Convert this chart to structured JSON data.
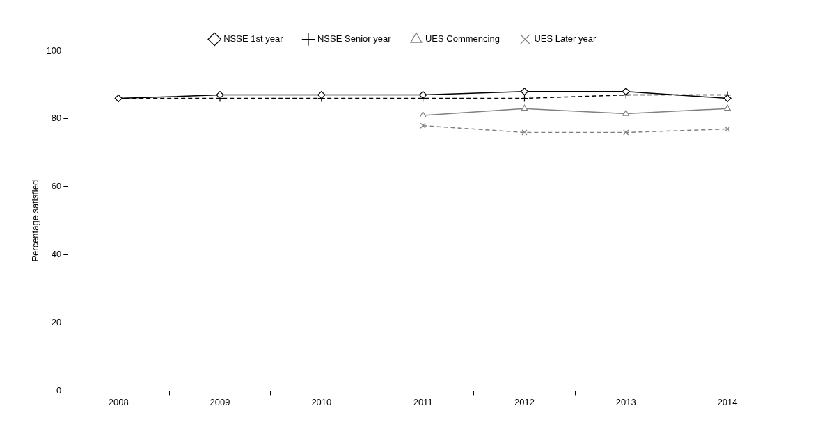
{
  "chart_data": {
    "type": "line",
    "ylabel": "Percentage satisfied",
    "categories": [
      "2008",
      "2009",
      "2010",
      "2011",
      "2012",
      "2013",
      "2014"
    ],
    "ylim": [
      0,
      100
    ],
    "yticks": [
      0,
      20,
      40,
      60,
      80,
      100
    ],
    "grid": false,
    "legend": "top",
    "series": [
      {
        "name": "NSSE 1st year",
        "color": "#000000",
        "marker": "diamond",
        "line_style": "solid",
        "values": [
          86,
          87,
          87,
          87,
          88,
          88,
          86
        ]
      },
      {
        "name": "NSSE Senior year",
        "color": "#000000",
        "marker": "cross",
        "line_style": "dashed",
        "values": [
          86,
          86,
          86,
          86,
          86,
          87,
          87
        ]
      },
      {
        "name": "UES Commencing",
        "color": "#808080",
        "marker": "triangle",
        "line_style": "solid",
        "values": [
          null,
          null,
          null,
          81,
          83,
          81.5,
          83
        ]
      },
      {
        "name": "UES Later year",
        "color": "#808080",
        "marker": "x",
        "line_style": "dashed",
        "values": [
          null,
          null,
          null,
          78,
          76,
          76,
          77
        ]
      }
    ]
  }
}
